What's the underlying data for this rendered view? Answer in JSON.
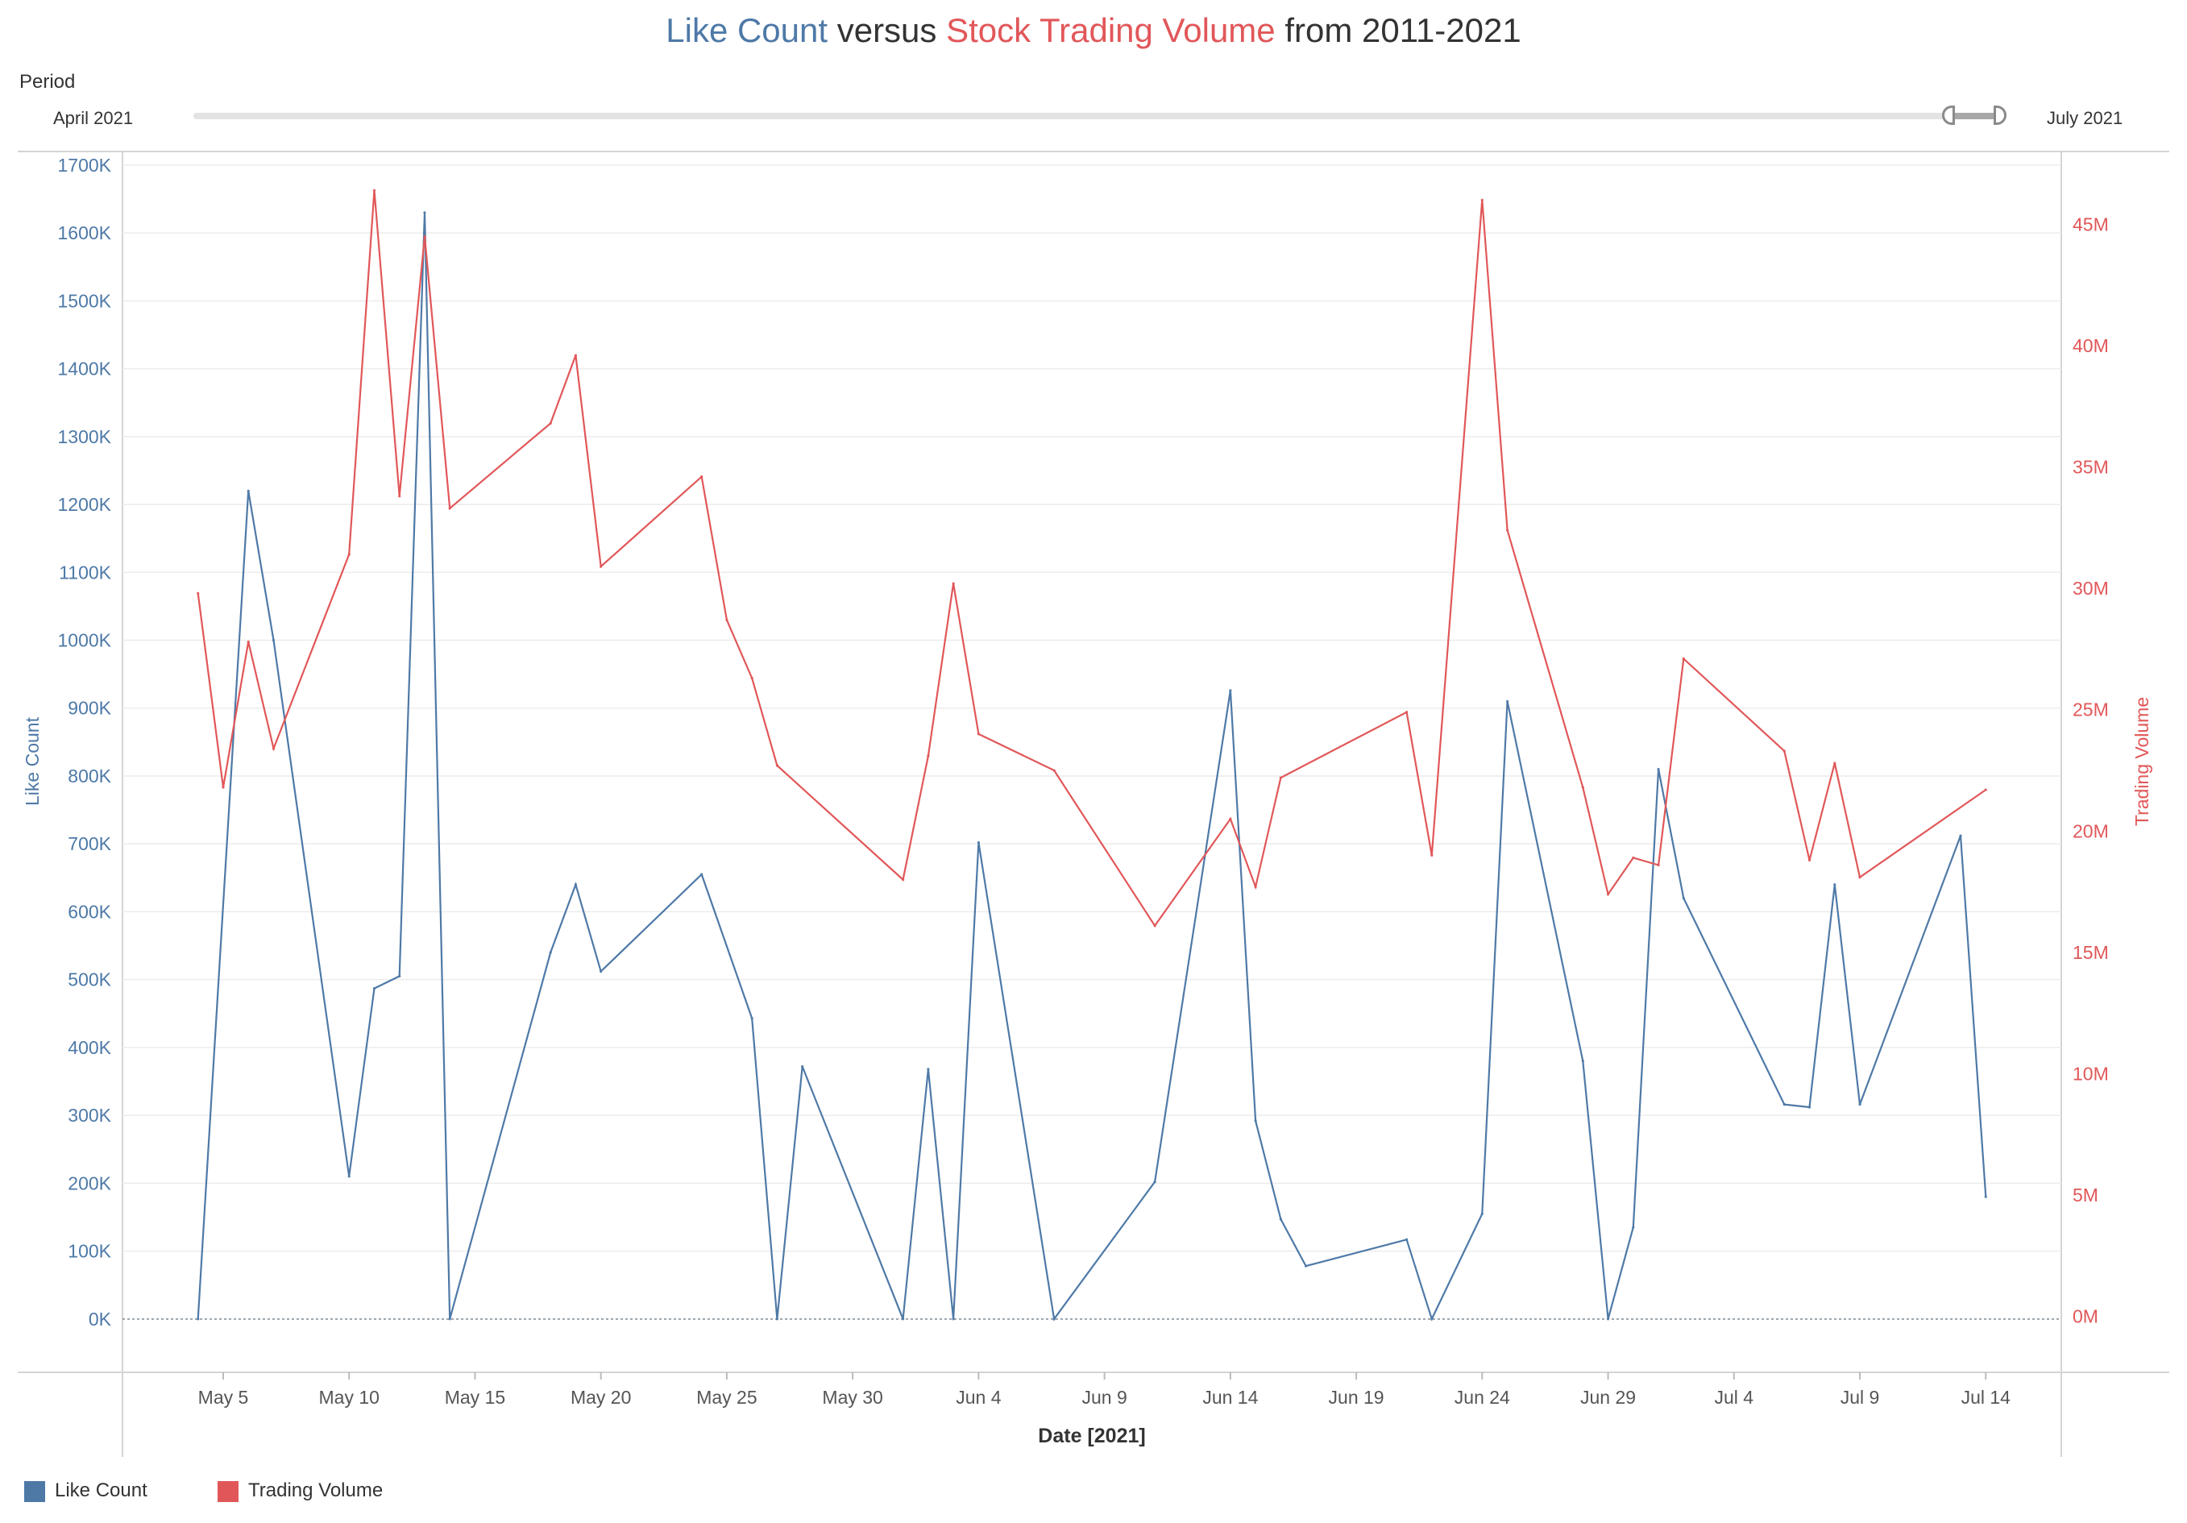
{
  "title": {
    "part1": "Like Count",
    "part2": " versus ",
    "part3": "Stock Trading Volume",
    "part4": " from 2011-2021"
  },
  "filter": {
    "label": "Period",
    "start_label": "April 2021",
    "end_label": "July 2021",
    "selected_fraction": [
      0.964,
      0.995
    ]
  },
  "legend": [
    {
      "label": "Like Count",
      "color": "#4e79a7"
    },
    {
      "label": "Trading Volume",
      "color": "#e15759"
    }
  ],
  "chart_data": {
    "type": "line",
    "xlabel": "Date [2021]",
    "ylabel_left": "Like Count",
    "ylabel_right": "Trading Volume",
    "x_range": [
      "2021-05-01",
      "2021-07-17"
    ],
    "x_ticks": [
      "2021-05-05",
      "2021-05-10",
      "2021-05-15",
      "2021-05-20",
      "2021-05-25",
      "2021-05-30",
      "2021-06-04",
      "2021-06-09",
      "2021-06-14",
      "2021-06-19",
      "2021-06-24",
      "2021-06-29",
      "2021-07-04",
      "2021-07-09",
      "2021-07-14"
    ],
    "x_tick_labels": [
      "May 5",
      "May 10",
      "May 15",
      "May 20",
      "May 25",
      "May 30",
      "Jun 4",
      "Jun 9",
      "Jun 14",
      "Jun 19",
      "Jun 24",
      "Jun 29",
      "Jul 4",
      "Jul 9",
      "Jul 14"
    ],
    "y_left_range": [
      -75000,
      1720000
    ],
    "y_left_ticks": [
      0,
      100000,
      200000,
      300000,
      400000,
      500000,
      600000,
      700000,
      800000,
      900000,
      1000000,
      1100000,
      1200000,
      1300000,
      1400000,
      1500000,
      1600000,
      1700000
    ],
    "y_left_tick_labels": [
      "0K",
      "100K",
      "200K",
      "300K",
      "400K",
      "500K",
      "600K",
      "700K",
      "800K",
      "900K",
      "1000K",
      "1100K",
      "1200K",
      "1300K",
      "1400K",
      "1500K",
      "1600K",
      "1700K"
    ],
    "y_right_range": [
      -2200000,
      48000000
    ],
    "y_right_ticks": [
      0,
      5000000,
      10000000,
      15000000,
      20000000,
      25000000,
      30000000,
      35000000,
      40000000,
      45000000
    ],
    "y_right_tick_labels": [
      "0M",
      "5M",
      "10M",
      "15M",
      "20M",
      "25M",
      "30M",
      "35M",
      "40M",
      "45M"
    ],
    "grid": true,
    "zero_line": true,
    "legend_position": "bottom-left",
    "series": [
      {
        "name": "Like Count",
        "axis": "left",
        "color": "#4e79a7",
        "points": [
          [
            "2021-05-04",
            0
          ],
          [
            "2021-05-06",
            1220000
          ],
          [
            "2021-05-07",
            1000000
          ],
          [
            "2021-05-10",
            210000
          ],
          [
            "2021-05-11",
            487000
          ],
          [
            "2021-05-12",
            505000
          ],
          [
            "2021-05-13",
            1630000
          ],
          [
            "2021-05-14",
            0
          ],
          [
            "2021-05-18",
            540000
          ],
          [
            "2021-05-19",
            640000
          ],
          [
            "2021-05-20",
            512000
          ],
          [
            "2021-05-24",
            655000
          ],
          [
            "2021-05-26",
            443000
          ],
          [
            "2021-05-27",
            0
          ],
          [
            "2021-05-28",
            372000
          ],
          [
            "2021-06-01",
            0
          ],
          [
            "2021-06-02",
            368000
          ],
          [
            "2021-06-03",
            0
          ],
          [
            "2021-06-04",
            702000
          ],
          [
            "2021-06-07",
            0
          ],
          [
            "2021-06-11",
            202000
          ],
          [
            "2021-06-14",
            926000
          ],
          [
            "2021-06-15",
            292000
          ],
          [
            "2021-06-16",
            147000
          ],
          [
            "2021-06-17",
            78000
          ],
          [
            "2021-06-21",
            117000
          ],
          [
            "2021-06-22",
            0
          ],
          [
            "2021-06-24",
            155000
          ],
          [
            "2021-06-25",
            910000
          ],
          [
            "2021-06-28",
            380000
          ],
          [
            "2021-06-29",
            0
          ],
          [
            "2021-06-30",
            135000
          ],
          [
            "2021-07-01",
            810000
          ],
          [
            "2021-07-02",
            620000
          ],
          [
            "2021-07-06",
            316000
          ],
          [
            "2021-07-07",
            312000
          ],
          [
            "2021-07-08",
            640000
          ],
          [
            "2021-07-09",
            316000
          ],
          [
            "2021-07-13",
            712000
          ],
          [
            "2021-07-14",
            180000
          ]
        ]
      },
      {
        "name": "Trading Volume",
        "axis": "right",
        "color": "#e15759",
        "points": [
          [
            "2021-05-04",
            29800000
          ],
          [
            "2021-05-05",
            21800000
          ],
          [
            "2021-05-06",
            27800000
          ],
          [
            "2021-05-07",
            23400000
          ],
          [
            "2021-05-10",
            31400000
          ],
          [
            "2021-05-11",
            46400000
          ],
          [
            "2021-05-12",
            33800000
          ],
          [
            "2021-05-13",
            44500000
          ],
          [
            "2021-05-14",
            33300000
          ],
          [
            "2021-05-18",
            36800000
          ],
          [
            "2021-05-19",
            39600000
          ],
          [
            "2021-05-20",
            30900000
          ],
          [
            "2021-05-24",
            34600000
          ],
          [
            "2021-05-25",
            28700000
          ],
          [
            "2021-05-26",
            26300000
          ],
          [
            "2021-05-27",
            22700000
          ],
          [
            "2021-06-01",
            18000000
          ],
          [
            "2021-06-02",
            23100000
          ],
          [
            "2021-06-03",
            30200000
          ],
          [
            "2021-06-04",
            24000000
          ],
          [
            "2021-06-07",
            22500000
          ],
          [
            "2021-06-11",
            16100000
          ],
          [
            "2021-06-14",
            20500000
          ],
          [
            "2021-06-15",
            17700000
          ],
          [
            "2021-06-16",
            22200000
          ],
          [
            "2021-06-21",
            24900000
          ],
          [
            "2021-06-22",
            19000000
          ],
          [
            "2021-06-24",
            46000000
          ],
          [
            "2021-06-25",
            32400000
          ],
          [
            "2021-06-28",
            21800000
          ],
          [
            "2021-06-29",
            17400000
          ],
          [
            "2021-06-30",
            18900000
          ],
          [
            "2021-07-01",
            18600000
          ],
          [
            "2021-07-02",
            27100000
          ],
          [
            "2021-07-06",
            23300000
          ],
          [
            "2021-07-07",
            18800000
          ],
          [
            "2021-07-08",
            22800000
          ],
          [
            "2021-07-09",
            18100000
          ],
          [
            "2021-07-14",
            21700000
          ]
        ]
      }
    ]
  }
}
